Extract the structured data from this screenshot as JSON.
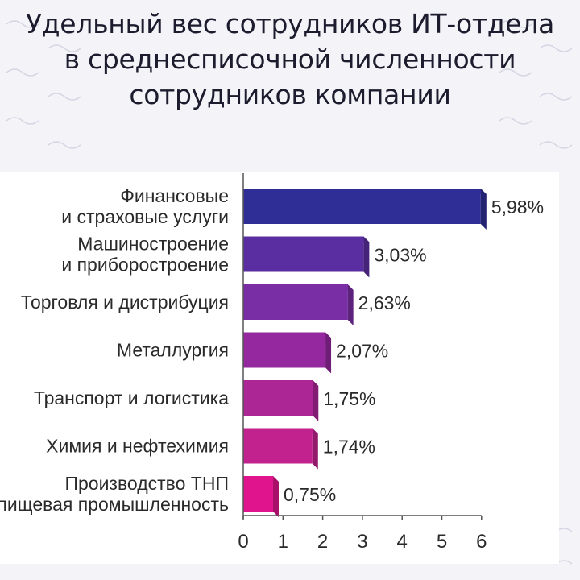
{
  "title": {
    "lines": [
      "Удельный вес сотрудников ИТ-отдела",
      "в среднесписочной численности",
      "сотрудников компании"
    ]
  },
  "colors": {
    "background": "#f4f4f8",
    "panel": "#ffffff",
    "bars": [
      "#2e2e96",
      "#5a2ea0",
      "#7a2ea6",
      "#95279f",
      "#ad2696",
      "#c2228e",
      "#e0148c"
    ]
  },
  "chart_data": {
    "type": "bar",
    "orientation": "horizontal",
    "title": "Удельный вес сотрудников ИТ-отдела в среднесписочной численности сотрудников компании",
    "categories": [
      [
        "Финансовые",
        "и страховые услуги"
      ],
      [
        "Машиностроение",
        "и приборостроение"
      ],
      [
        "Торговля и дистрибуция"
      ],
      [
        "Металлургия"
      ],
      [
        "Транспорт и логистика"
      ],
      [
        "Химия и нефтехимия"
      ],
      [
        "Производство ТНП",
        "и пищевая промышленность"
      ]
    ],
    "values": [
      5.98,
      3.03,
      2.63,
      2.07,
      1.75,
      1.74,
      0.75
    ],
    "value_labels": [
      "5,98%",
      "3,03%",
      "2,63%",
      "2,07%",
      "1,75%",
      "1,74%",
      "0,75%"
    ],
    "xlim": [
      0,
      6
    ],
    "xticks": [
      "0",
      "1",
      "2",
      "3",
      "4",
      "5",
      "6"
    ],
    "xlabel": "",
    "ylabel": "",
    "grid": false,
    "legend": "none"
  }
}
